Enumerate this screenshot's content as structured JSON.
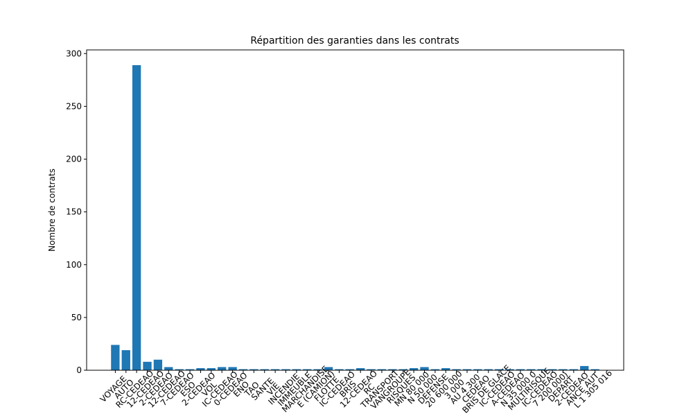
{
  "chart_data": {
    "type": "bar",
    "title": "Répartition des garanties dans les contrats",
    "y_label": "Nombre de contrats",
    "categories": [
      "VOYAGE",
      "AUTO",
      "RC-CEDEAO",
      "12-CEDEAO",
      "2-CEDEAO",
      "12-CEDEAO",
      "7-CEDEAO",
      "ESO",
      "2-CEDEAO",
      "VOL",
      "IC-CEDEAO",
      "0-CEDEAO",
      "ENO",
      "TAO",
      "SANTE",
      "VIE",
      "INCENDIE",
      "IMMEUBLE",
      "MARCHANDISE",
      "E (CAMION)",
      "FLOTTE",
      "IC-CEDEAO",
      "BRIS",
      "12-CEDEAO",
      "RC",
      "TRANSPORT",
      "VANGROUPE",
      "RISQUES",
      "MN 80 000",
      "N 50 000",
      "DEFENSE",
      "20 600 000",
      "3 000",
      "AU 4 300",
      "CEDEAO",
      "BRIS DE GLACE",
      "IC-CEDEAO",
      "A-CEDEAO",
      "N 35 000 0",
      "MULTIRISQUE",
      "IC-CEDEAO",
      "7 200 000)",
      "DEPART",
      "2-CEDEAO",
      "ANCE AUT",
      "L 1 305 016"
    ],
    "values": [
      24,
      19,
      289,
      8,
      10,
      3,
      1,
      1,
      2,
      2,
      3,
      3,
      1,
      1,
      1,
      1,
      1,
      1,
      1,
      1,
      3,
      1,
      1,
      2,
      1,
      1,
      1,
      1,
      2,
      3,
      1,
      2,
      1,
      1,
      1,
      1,
      1,
      1,
      1,
      1,
      1,
      1,
      1,
      1,
      4,
      1
    ],
    "color": "#1f77b4",
    "ylim": [
      0,
      303.45
    ],
    "yticks": [
      0,
      50,
      100,
      150,
      200,
      250,
      300
    ]
  }
}
